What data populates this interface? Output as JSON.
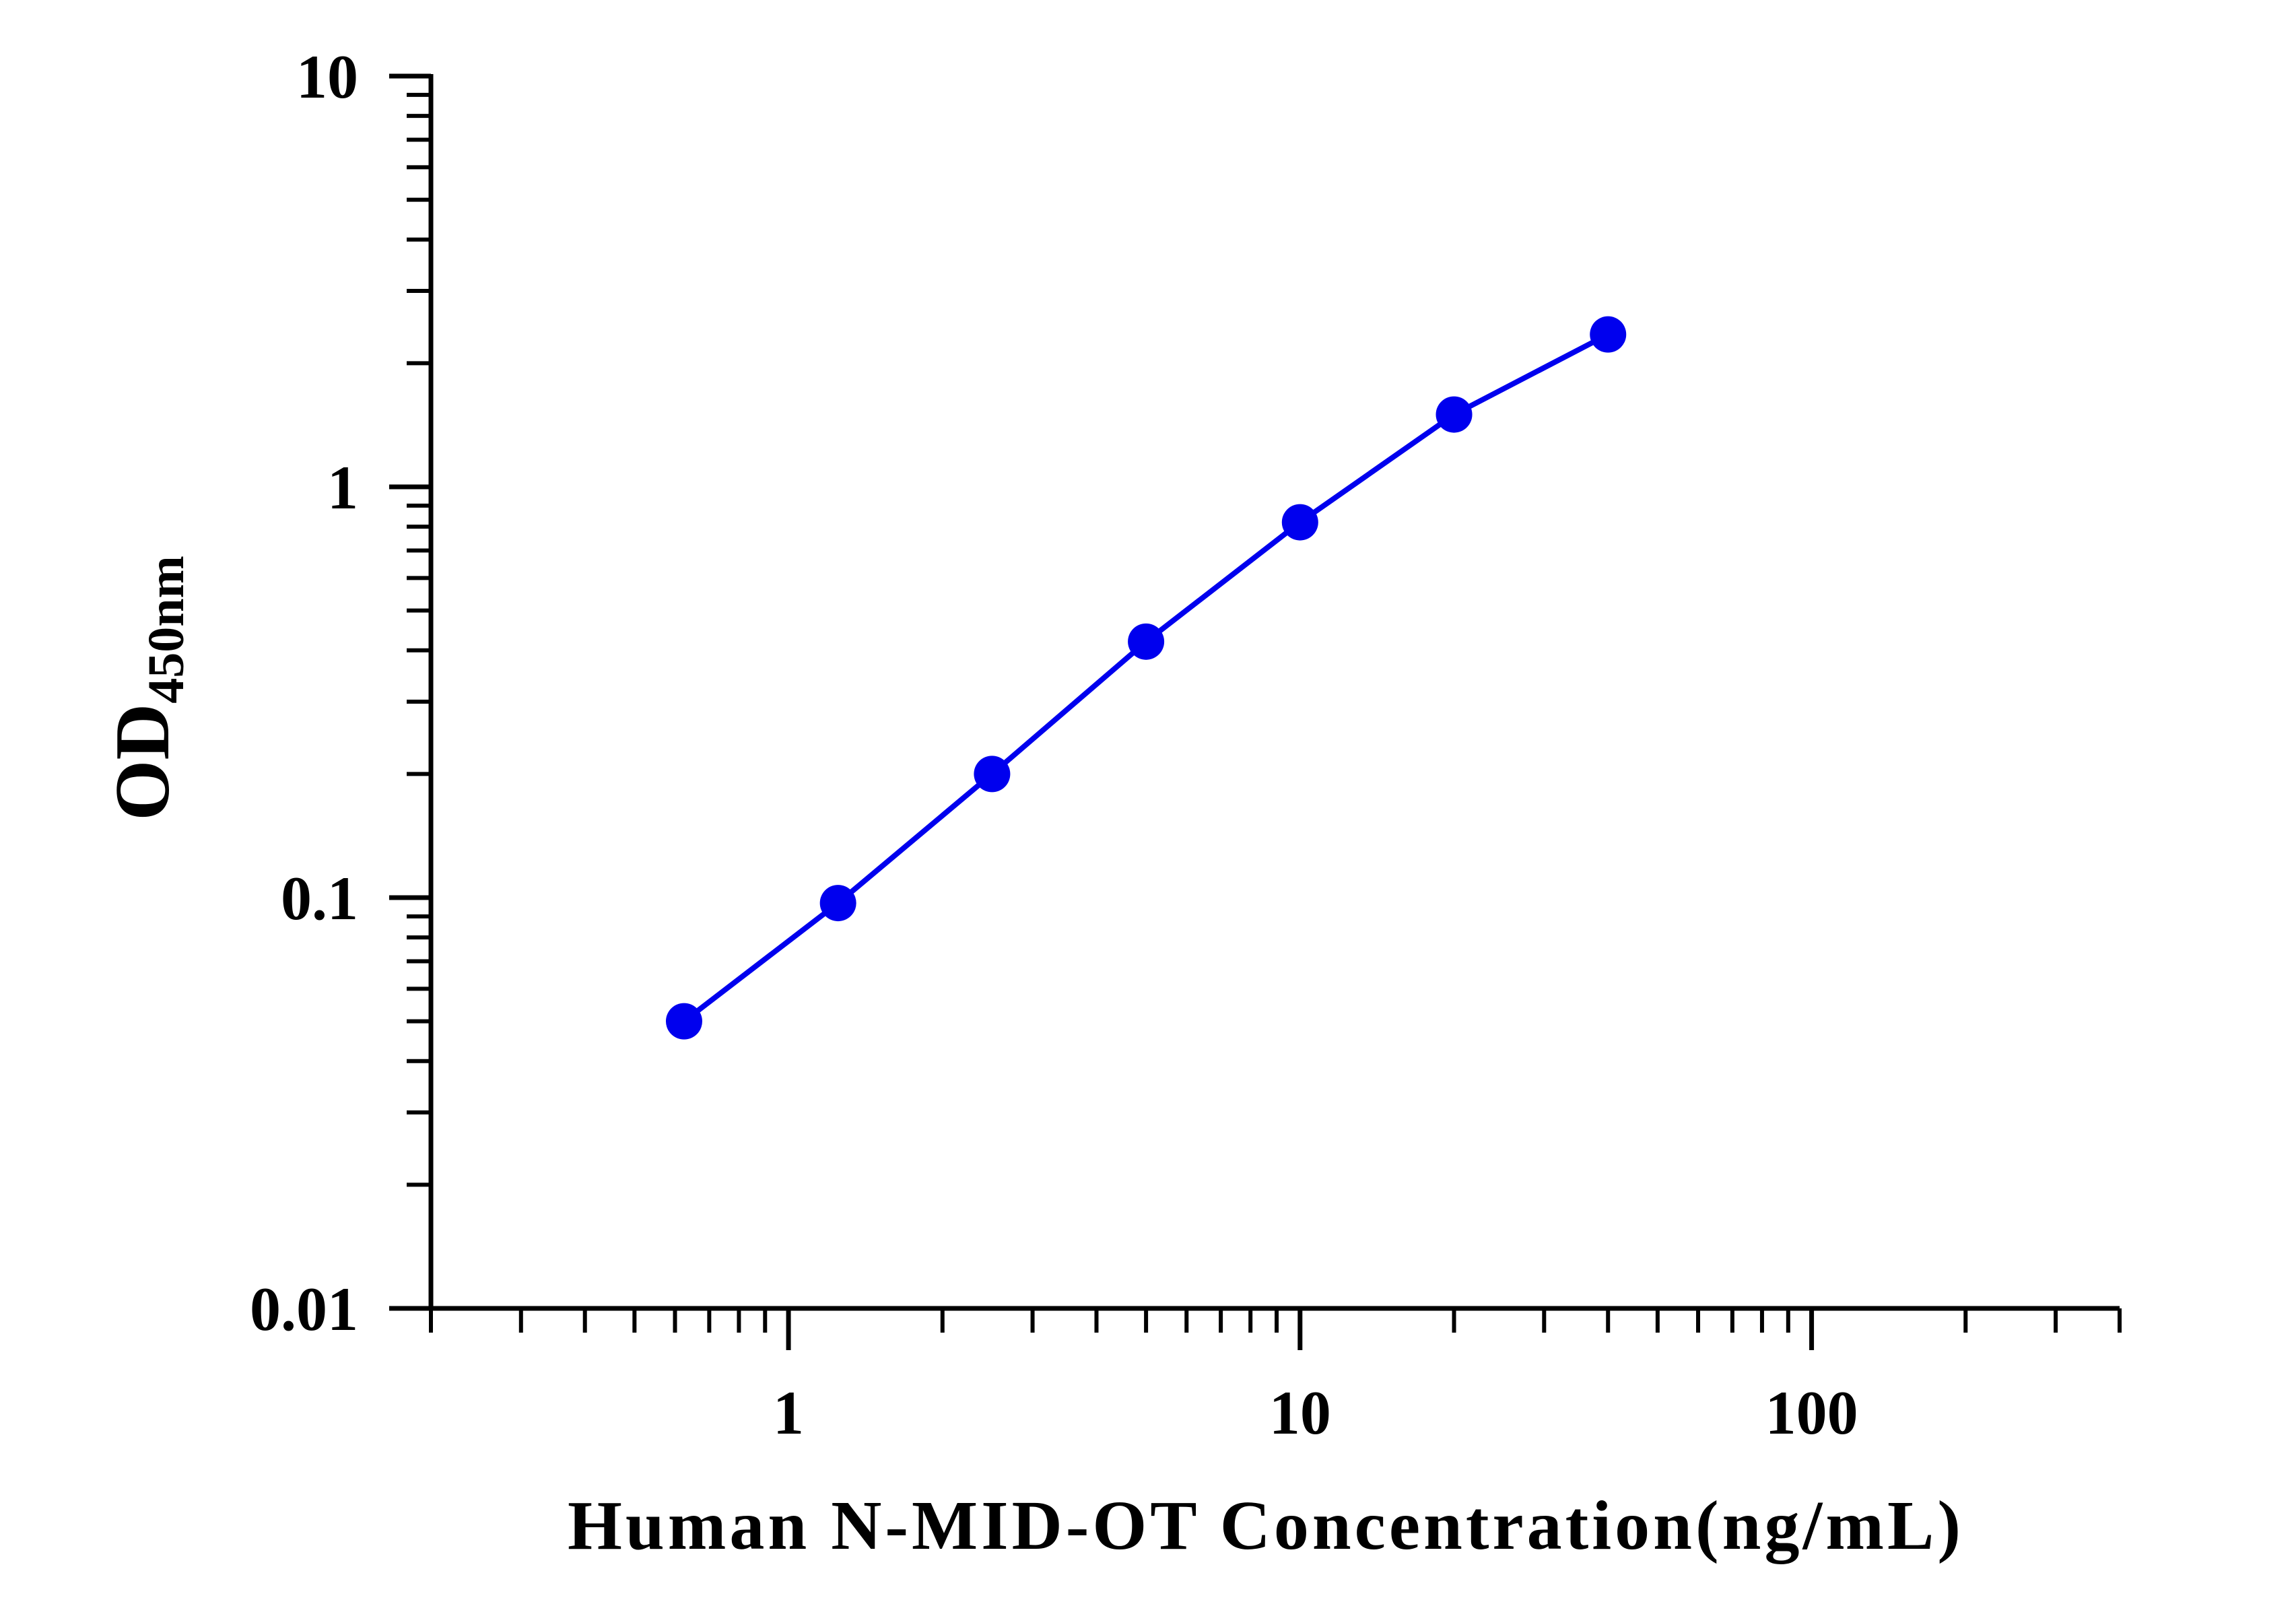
{
  "chart_data": {
    "type": "line",
    "xscale": "log",
    "yscale": "log",
    "xlim": [
      0.2,
      400
    ],
    "ylim": [
      0.01,
      10
    ],
    "xlabel": "Human N-MID-OT Concentration(ng/mL)",
    "ylabel": {
      "main": "OD",
      "subscript": "450nm"
    },
    "x_ticks": [
      {
        "value": 1,
        "label": "1"
      },
      {
        "value": 10,
        "label": "10"
      },
      {
        "value": 100,
        "label": "100"
      }
    ],
    "y_ticks": [
      {
        "value": 0.01,
        "label": "0.01"
      },
      {
        "value": 0.1,
        "label": "0.1"
      },
      {
        "value": 1,
        "label": "1"
      },
      {
        "value": 10,
        "label": "10"
      }
    ],
    "grid": false,
    "series": [
      {
        "color": "#0000ee",
        "x": [
          0.625,
          1.25,
          2.5,
          5,
          10,
          20,
          40
        ],
        "y": [
          0.05,
          0.097,
          0.2,
          0.42,
          0.82,
          1.5,
          2.35
        ]
      }
    ]
  }
}
